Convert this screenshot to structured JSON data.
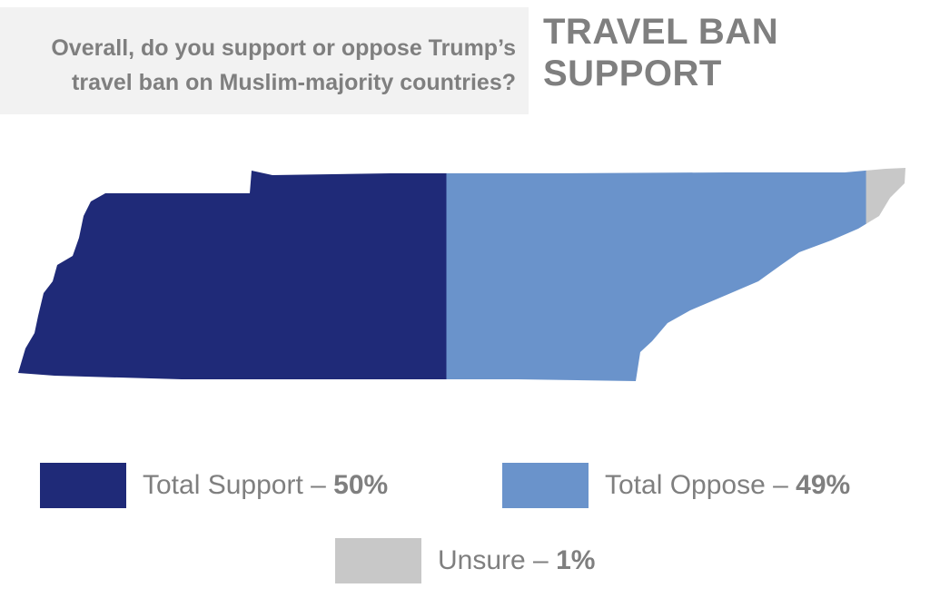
{
  "question": {
    "line1": "Overall, do you support or oppose Trump’s",
    "line2": "travel ban on Muslim-majority countries?"
  },
  "title": {
    "line1": "TRAVEL BAN",
    "line2": "SUPPORT"
  },
  "chart_data": {
    "type": "pie",
    "series": [
      {
        "name": "Total Support",
        "value": 50,
        "color": "#1f2a78"
      },
      {
        "name": "Total Oppose",
        "value": 49,
        "color": "#6a93cb"
      },
      {
        "name": "Unsure",
        "value": 1,
        "color": "#c8c8c8"
      }
    ],
    "unit": "%"
  },
  "legend": {
    "support": {
      "label": "Total Support – ",
      "value": "50%"
    },
    "oppose": {
      "label": "Total Oppose – ",
      "value": "49%"
    },
    "unsure": {
      "label": "Unsure – ",
      "value": "1%"
    }
  }
}
